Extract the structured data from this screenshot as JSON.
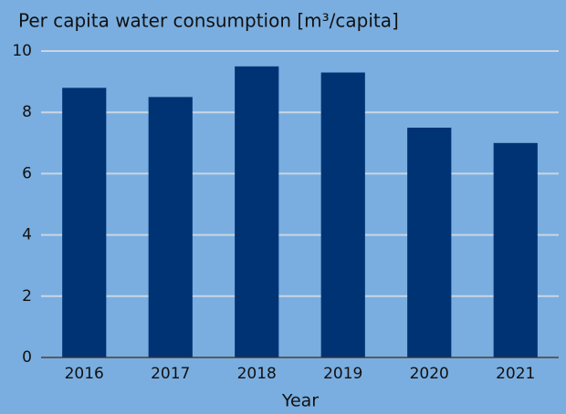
{
  "chart_data": {
    "type": "bar",
    "title": "Per capita water consumption [m³/capita]",
    "x_label": "Year",
    "categories": [
      "2016",
      "2017",
      "2018",
      "2019",
      "2020",
      "2021"
    ],
    "values": [
      8.8,
      8.5,
      9.5,
      9.3,
      7.5,
      7.0
    ],
    "color": "#003374",
    "ylim": [
      0,
      10
    ],
    "yticks": [
      0,
      2,
      4,
      6,
      8,
      10
    ],
    "grid": true
  }
}
